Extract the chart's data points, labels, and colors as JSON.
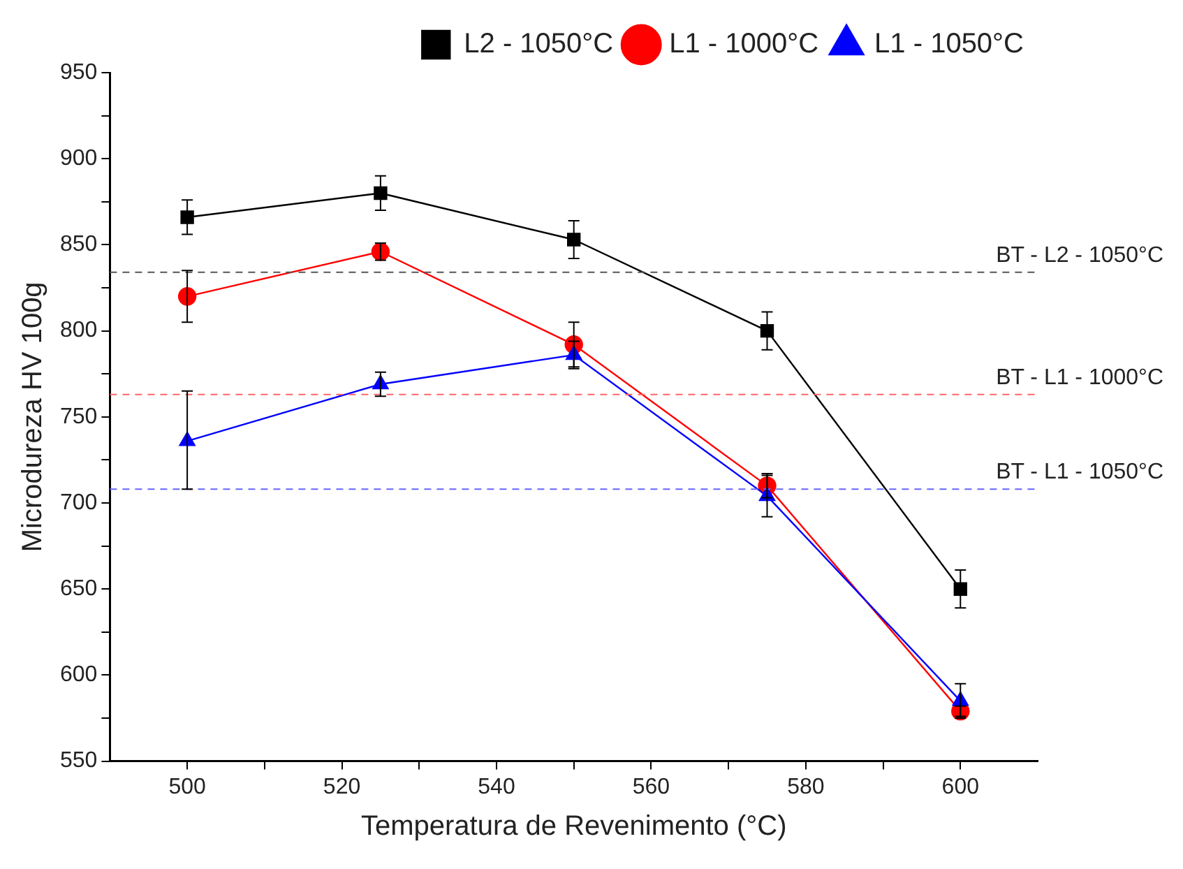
{
  "chart_data": {
    "type": "line",
    "xlabel": "Temperatura de Revenimento (°C)",
    "ylabel": "Microdureza HV 100g",
    "xlim": [
      490,
      610
    ],
    "xticks": [
      500,
      {
        "value": 510,
        "label": null
      },
      520,
      {
        "value": 530,
        "label": null
      },
      540,
      {
        "value": 550,
        "label": null
      },
      560,
      {
        "value": 570,
        "label": null
      },
      580,
      {
        "value": 590,
        "label": null
      },
      600
    ],
    "ylim": [
      550,
      950
    ],
    "yticks": [
      550,
      {
        "value": 575,
        "label": null
      },
      600,
      {
        "value": 625,
        "label": null
      },
      650,
      {
        "value": 675,
        "label": null
      },
      700,
      {
        "value": 725,
        "label": null
      },
      750,
      {
        "value": 775,
        "label": null
      },
      800,
      {
        "value": 825,
        "label": null
      },
      850,
      {
        "value": 875,
        "label": null
      },
      900,
      {
        "value": 925,
        "label": null
      },
      950
    ],
    "x": [
      500,
      525,
      550,
      575,
      600
    ],
    "series": [
      {
        "name": "L2 - 1050°C",
        "color": "#000000",
        "marker": "square",
        "values": [
          866,
          880,
          853,
          800,
          650
        ],
        "errors": [
          10,
          10,
          11,
          11,
          11
        ]
      },
      {
        "name": "L1 - 1000°C",
        "color": "#ff0000",
        "marker": "circle",
        "values": [
          820,
          846,
          792,
          710,
          579
        ],
        "errors": [
          15,
          5,
          13,
          7,
          3
        ]
      },
      {
        "name": "L1 - 1050°C",
        "color": "#0000ff",
        "marker": "triangle",
        "values": [
          736,
          769,
          786,
          704,
          585
        ],
        "errors": [
          [
            708,
            765
          ],
          7,
          8,
          12,
          10
        ]
      }
    ],
    "ref_lines": [
      {
        "axis": "y",
        "value": 834,
        "label": "BT - L2 - 1050°C",
        "color": "#555555",
        "line_style": "dashed"
      },
      {
        "axis": "y",
        "value": 763,
        "label": "BT - L1 - 1000°C",
        "color": "#ff6666",
        "line_style": "dashed"
      },
      {
        "axis": "y",
        "value": 708,
        "label": "BT - L1 - 1050°C",
        "color": "#6666ff",
        "line_style": "dashed"
      }
    ],
    "legend": "top right",
    "grid": false,
    "line_style": "solid"
  }
}
